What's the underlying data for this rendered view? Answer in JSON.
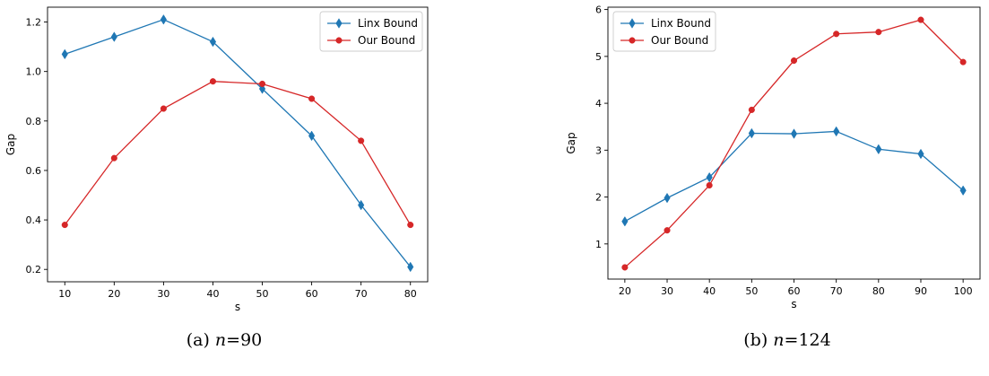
{
  "chart_data": [
    {
      "type": "line",
      "xlabel": "s",
      "ylabel": "Gap",
      "xlim": [
        6.5,
        83.5
      ],
      "ylim": [
        0.15,
        1.26
      ],
      "xticks": [
        10,
        20,
        30,
        40,
        50,
        60,
        70,
        80
      ],
      "yticks": [
        0.2,
        0.4,
        0.6,
        0.8,
        1.0,
        1.2
      ],
      "ytick_labels": [
        "0.2",
        "0.4",
        "0.6",
        "0.8",
        "1.0",
        "1.2"
      ],
      "x": [
        10,
        20,
        30,
        40,
        50,
        60,
        70,
        80
      ],
      "legend_position": "top-right",
      "grid": false,
      "caption": {
        "label": "(a)",
        "var": "n",
        "eq": "=90"
      },
      "series": [
        {
          "name": "Linx Bound",
          "color": "#1f77b4",
          "marker": "diamond",
          "values": [
            1.07,
            1.14,
            1.21,
            1.12,
            0.93,
            0.74,
            0.46,
            0.21
          ]
        },
        {
          "name": "Our Bound",
          "color": "#d62728",
          "marker": "circle",
          "values": [
            0.38,
            0.65,
            0.85,
            0.96,
            0.95,
            0.89,
            0.72,
            0.38
          ]
        }
      ]
    },
    {
      "type": "line",
      "xlabel": "s",
      "ylabel": "Gap",
      "xlim": [
        16,
        104
      ],
      "ylim": [
        0.25,
        6.05
      ],
      "xticks": [
        20,
        30,
        40,
        50,
        60,
        70,
        80,
        90,
        100
      ],
      "yticks": [
        1,
        2,
        3,
        4,
        5,
        6
      ],
      "ytick_labels": [
        "1",
        "2",
        "3",
        "4",
        "5",
        "6"
      ],
      "x": [
        20,
        30,
        40,
        50,
        60,
        70,
        80,
        90,
        100
      ],
      "legend_position": "top-left",
      "grid": false,
      "caption": {
        "label": "(b)",
        "var": "n",
        "eq": "=124"
      },
      "series": [
        {
          "name": "Linx Bound",
          "color": "#1f77b4",
          "marker": "diamond",
          "values": [
            1.48,
            1.98,
            2.42,
            3.36,
            3.35,
            3.4,
            3.02,
            2.92,
            2.14
          ]
        },
        {
          "name": "Our Bound",
          "color": "#d62728",
          "marker": "circle",
          "values": [
            0.5,
            1.29,
            2.25,
            3.86,
            4.91,
            5.48,
            5.52,
            5.78,
            4.88
          ]
        }
      ]
    }
  ]
}
